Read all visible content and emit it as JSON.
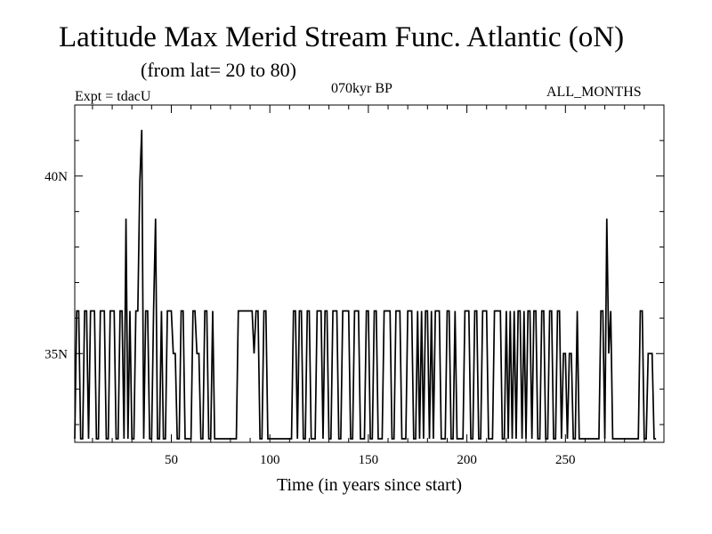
{
  "chart_data": {
    "type": "line",
    "title": "Latitude Max Merid Stream Func. Atlantic (oN)",
    "subtitle": "(from lat= 20 to 80)",
    "header_left": "Expt = tdacU",
    "header_center": "070kyr BP",
    "header_right": "ALL_MONTHS",
    "xlabel": "Time (in years since start)",
    "ylabel": "",
    "xlim": [
      1,
      300
    ],
    "ylim": [
      32.5,
      42
    ],
    "x_ticks": [
      50,
      100,
      150,
      200,
      250
    ],
    "x_tick_labels": [
      "50",
      "100",
      "150",
      "200",
      "250"
    ],
    "y_ticks": [
      35,
      40
    ],
    "y_tick_labels": [
      "35N",
      "40N"
    ],
    "grid": false,
    "series": [
      {
        "name": "",
        "color": "#000000",
        "values": [
          32.6,
          36.2,
          36.2,
          32.6,
          32.6,
          36.2,
          36.2,
          32.6,
          36.2,
          36.2,
          36.2,
          32.6,
          32.6,
          36.2,
          36.2,
          36.2,
          32.6,
          32.6,
          36.2,
          36.2,
          36.2,
          32.6,
          32.6,
          36.2,
          36.2,
          32.6,
          38.8,
          32.6,
          36.2,
          32.6,
          32.6,
          36.2,
          36.2,
          39.8,
          41.3,
          32.6,
          36.2,
          36.2,
          32.6,
          32.6,
          36.2,
          38.8,
          32.6,
          32.6,
          36.2,
          32.6,
          32.6,
          36.2,
          36.2,
          36.2,
          35.0,
          35.0,
          32.6,
          32.6,
          36.2,
          36.2,
          32.6,
          32.6,
          32.6,
          32.6,
          36.2,
          36.2,
          35.0,
          35.0,
          32.6,
          32.6,
          36.2,
          36.2,
          32.6,
          32.6,
          36.2,
          32.6,
          32.6,
          32.6,
          32.6,
          32.6,
          32.6,
          32.6,
          32.6,
          32.6,
          32.6,
          32.6,
          32.6,
          36.2,
          36.2,
          36.2,
          36.2,
          36.2,
          36.2,
          36.2,
          36.2,
          35.0,
          36.2,
          36.2,
          32.6,
          32.6,
          36.2,
          36.2,
          32.6,
          32.6,
          32.6,
          32.6,
          32.6,
          32.6,
          32.6,
          32.6,
          32.6,
          32.6,
          32.6,
          32.6,
          32.6,
          36.2,
          36.2,
          32.6,
          36.2,
          36.2,
          32.6,
          32.6,
          36.2,
          36.2,
          32.6,
          32.6,
          32.6,
          36.2,
          36.2,
          36.2,
          32.6,
          36.2,
          36.2,
          32.6,
          32.6,
          36.2,
          36.2,
          36.2,
          32.6,
          32.6,
          36.2,
          36.2,
          36.2,
          36.2,
          32.6,
          32.6,
          36.2,
          36.2,
          36.2,
          32.6,
          32.6,
          32.6,
          36.2,
          36.2,
          32.6,
          32.6,
          36.2,
          36.2,
          32.6,
          32.6,
          32.6,
          36.2,
          36.2,
          36.2,
          36.2,
          32.6,
          32.6,
          36.2,
          36.2,
          36.2,
          32.6,
          32.6,
          32.6,
          36.2,
          36.2,
          36.2,
          32.6,
          32.6,
          36.2,
          32.6,
          36.2,
          32.6,
          36.2,
          36.2,
          32.6,
          36.2,
          32.6,
          36.2,
          36.2,
          36.2,
          32.6,
          32.6,
          32.6,
          36.2,
          36.2,
          32.6,
          32.6,
          36.2,
          32.6,
          32.6,
          32.6,
          32.6,
          36.2,
          36.2,
          36.2,
          32.6,
          32.6,
          36.2,
          36.2,
          32.6,
          32.6,
          36.2,
          36.2,
          36.2,
          32.6,
          32.6,
          32.6,
          36.2,
          36.2,
          36.2,
          36.2,
          32.6,
          32.6,
          36.2,
          32.6,
          36.2,
          32.6,
          36.2,
          32.6,
          36.2,
          36.2,
          32.6,
          36.2,
          32.6,
          36.2,
          36.2,
          32.6,
          36.2,
          36.2,
          32.6,
          32.6,
          36.2,
          36.2,
          32.6,
          32.6,
          36.2,
          36.2,
          32.6,
          32.6,
          36.2,
          36.2,
          32.6,
          35.0,
          35.0,
          32.6,
          35.0,
          35.0,
          32.6,
          32.6,
          36.2,
          32.6,
          32.6,
          32.6,
          32.6,
          32.6,
          32.6,
          32.6,
          32.6,
          32.6,
          32.6,
          32.6,
          36.2,
          36.2,
          32.6,
          38.8,
          35.0,
          36.2,
          32.6,
          32.6,
          32.6,
          32.6,
          32.6,
          32.6,
          32.6,
          32.6,
          32.6,
          32.6,
          32.6,
          32.6,
          32.6,
          32.6,
          36.2,
          36.2,
          32.6,
          32.6,
          35.0,
          35.0,
          35.0,
          32.6,
          32.6
        ]
      }
    ]
  }
}
